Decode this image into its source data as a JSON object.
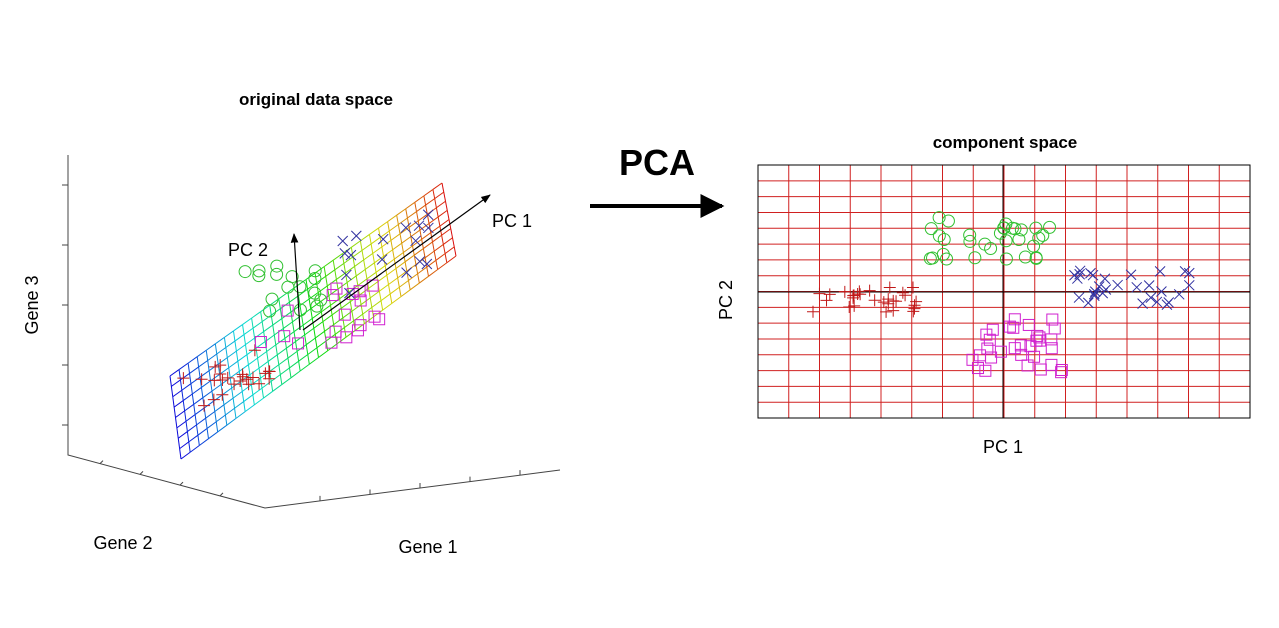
{
  "left_panel": {
    "title": "original data space",
    "z_label": "Gene 3",
    "y_label": "Gene 2",
    "x_label": "Gene 1",
    "pc1_label": "PC 1",
    "pc2_label": "PC 2"
  },
  "transform": {
    "label": "PCA"
  },
  "right_panel": {
    "title": "component space",
    "x_label": "PC 1",
    "y_label": "PC 2"
  }
}
